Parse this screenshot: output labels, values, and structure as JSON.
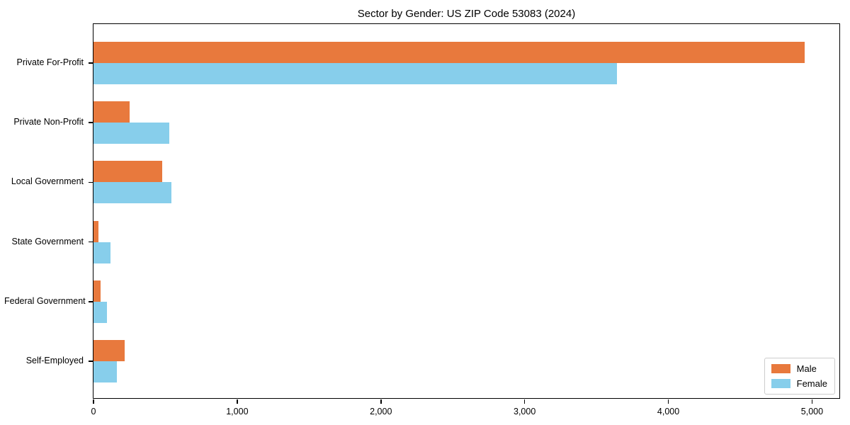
{
  "chart_data": {
    "type": "bar",
    "orientation": "horizontal",
    "title": "Sector by Gender: US ZIP Code 53083 (2024)",
    "categories": [
      "Private For-Profit",
      "Private Non-Profit",
      "Local Government",
      "State Government",
      "Federal Government",
      "Self-Employed"
    ],
    "series": [
      {
        "name": "Male",
        "color": "#e8793d",
        "values": [
          4950,
          250,
          480,
          35,
          50,
          215
        ]
      },
      {
        "name": "Female",
        "color": "#87ceeb",
        "values": [
          3640,
          525,
          540,
          120,
          95,
          165
        ]
      }
    ],
    "xlabel": "",
    "ylabel": "",
    "xlim": [
      0,
      5200
    ],
    "x_ticks": [
      {
        "value": 0,
        "label": "0"
      },
      {
        "value": 1000,
        "label": "1,000"
      },
      {
        "value": 2000,
        "label": "2,000"
      },
      {
        "value": 3000,
        "label": "3,000"
      },
      {
        "value": 4000,
        "label": "4,000"
      },
      {
        "value": 5000,
        "label": "5,000"
      }
    ],
    "grid": false,
    "legend_position": "lower right"
  }
}
